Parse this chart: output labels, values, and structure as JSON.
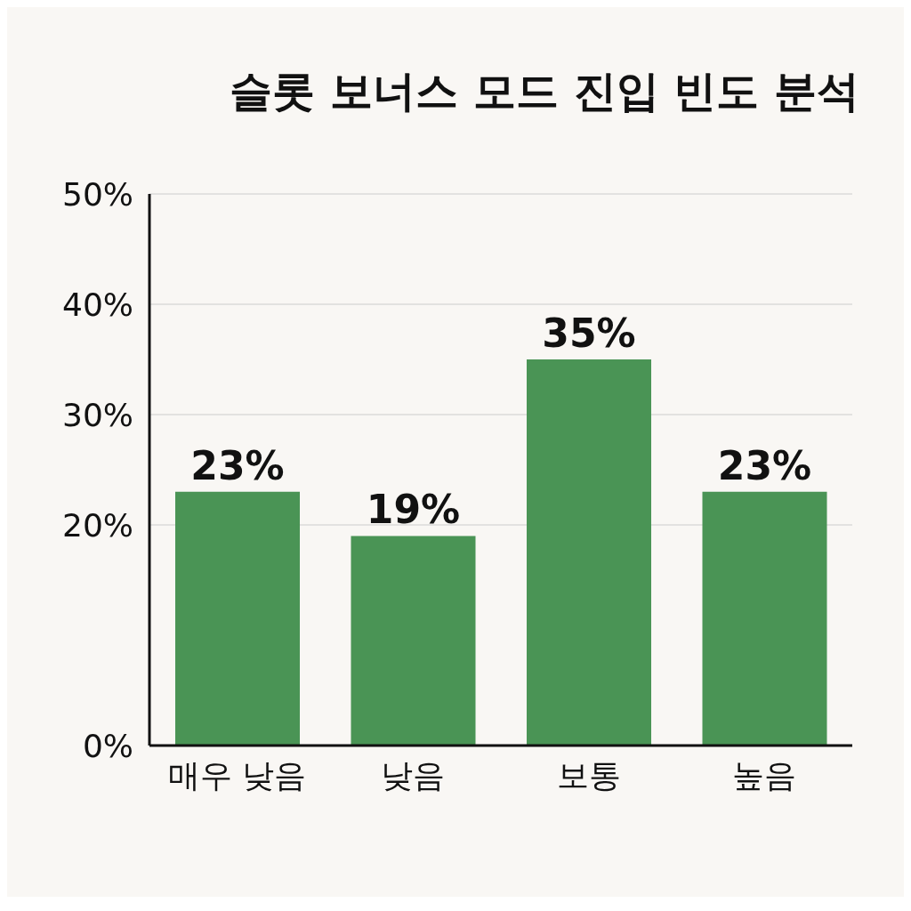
{
  "chart_data": {
    "type": "bar",
    "title": "슬롯 보너스 모드 진입 빈도 분석",
    "categories": [
      "매우 낮음",
      "낮음",
      "보통",
      "높음"
    ],
    "values": [
      23,
      19,
      35,
      23
    ],
    "color": "#4a9455",
    "ylim": [
      0,
      50
    ],
    "yticks": [
      {
        "value": 0,
        "label": "0%"
      },
      {
        "value": 20,
        "label": "20%"
      },
      {
        "value": 30,
        "label": "30%"
      },
      {
        "value": 40,
        "label": "40%"
      },
      {
        "value": 50,
        "label": "50%"
      }
    ],
    "grid": "y",
    "value_labels": [
      "23%",
      "19%",
      "35%",
      "23%"
    ]
  }
}
